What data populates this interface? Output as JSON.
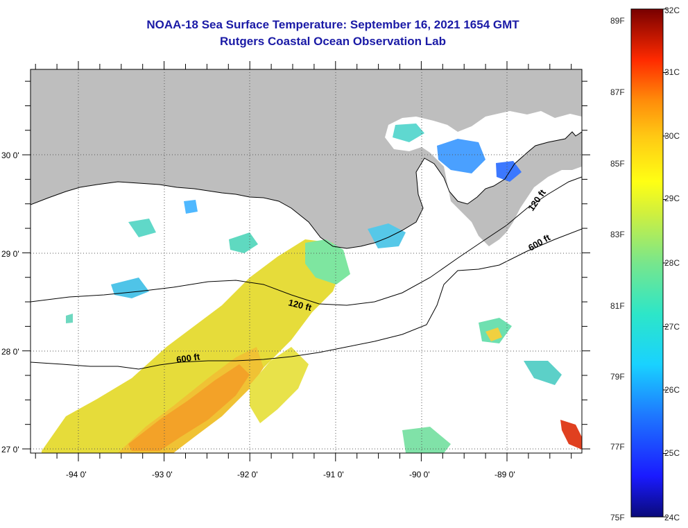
{
  "title": {
    "line1": "NOAA-18 Sea Surface Temperature:  September 16, 2021 1654 GMT",
    "line2": "Rutgers Coastal Ocean Observation Lab"
  },
  "axes": {
    "lat_labels": [
      "30 0'",
      "29 0'",
      "28 0'",
      "27 0'"
    ],
    "lon_labels": [
      "-94 0'",
      "-93 0'",
      "-92 0'",
      "-91 0'",
      "-90 0'",
      "-89 0'"
    ]
  },
  "contours": {
    "c120_a": "120 ft",
    "c120_b": "120 ft",
    "c600_a": "600 ft",
    "c600_b": "600 ft"
  },
  "colorbar": {
    "fahrenheit": [
      "89F",
      "87F",
      "85F",
      "83F",
      "81F",
      "79F",
      "77F",
      "75F"
    ],
    "celsius": [
      "32C",
      "31C",
      "30C",
      "29C",
      "28C",
      "27C",
      "26C",
      "25C",
      "24C"
    ]
  },
  "colors": {
    "land": "#bebebe",
    "cloud": "#ffffff",
    "title": "#1a1aa6"
  }
}
